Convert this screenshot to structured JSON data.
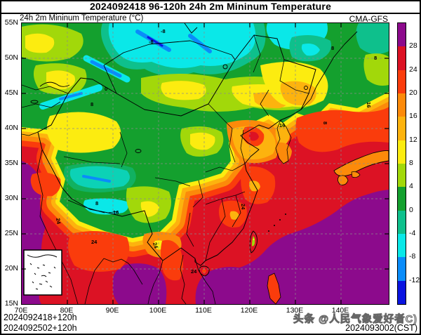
{
  "header": {
    "title": "2024092418 96-120h 24h 2m Mininum Temperature"
  },
  "map": {
    "subtitle": "24h 2m Mininum Temperature (°C)",
    "model": "CMA-GFS",
    "contour_labels": [
      "-8",
      "-8",
      "8",
      "8",
      "16",
      "8",
      "8",
      "0",
      "16",
      "8",
      "16",
      "24",
      "24",
      "24",
      "24",
      "24"
    ]
  },
  "axes": {
    "x_ticks": [
      "70E",
      "80E",
      "90E",
      "100E",
      "110E",
      "120E",
      "130E",
      "140E"
    ],
    "y_ticks": [
      "55N",
      "50N",
      "45N",
      "40N",
      "35N",
      "30N",
      "25N",
      "20N",
      "15N"
    ]
  },
  "colorbar": {
    "labels": [
      "28",
      "24",
      "20",
      "16",
      "12",
      "8",
      "4",
      "0",
      "-4",
      "-8",
      "-12"
    ],
    "colors": [
      "#8c0a8c",
      "#dc1224",
      "#fa3c0c",
      "#fc8a0a",
      "#fdb30e",
      "#fcec10",
      "#a2d80a",
      "#14a02e",
      "#0ec08c",
      "#0ae8e8",
      "#0a8cfa",
      "#0a14e0"
    ]
  },
  "footer": {
    "init_line1": "2024092418+120h",
    "init_line2": "2024092502+120h",
    "watermark": "头条 @人民气象爱好者C)",
    "valid_time": "2024093002(CST)"
  }
}
